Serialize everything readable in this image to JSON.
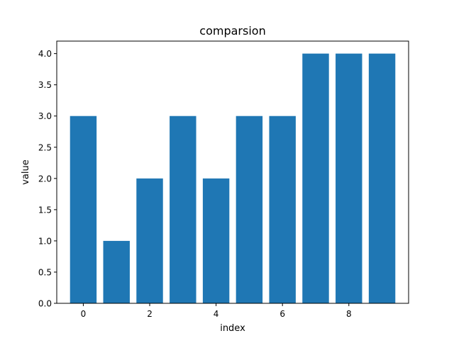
{
  "chart_data": {
    "type": "bar",
    "title": "comparsion",
    "xlabel": "index",
    "ylabel": "value",
    "categories": [
      0,
      1,
      2,
      3,
      4,
      5,
      6,
      7,
      8,
      9
    ],
    "values": [
      3,
      1,
      2,
      3,
      2,
      3,
      3,
      4,
      4,
      4
    ],
    "xlim": [
      -0.8,
      9.8
    ],
    "ylim": [
      0,
      4.2
    ],
    "xticks": [
      0,
      2,
      4,
      6,
      8
    ],
    "xtick_labels": [
      "0",
      "2",
      "4",
      "6",
      "8"
    ],
    "yticks": [
      0.0,
      0.5,
      1.0,
      1.5,
      2.0,
      2.5,
      3.0,
      3.5,
      4.0
    ],
    "ytick_labels": [
      "0.0",
      "0.5",
      "1.0",
      "1.5",
      "2.0",
      "2.5",
      "3.0",
      "3.5",
      "4.0"
    ],
    "bar_width": 0.8,
    "bar_color": "#1f77b4",
    "grid": false,
    "legend": "none"
  }
}
